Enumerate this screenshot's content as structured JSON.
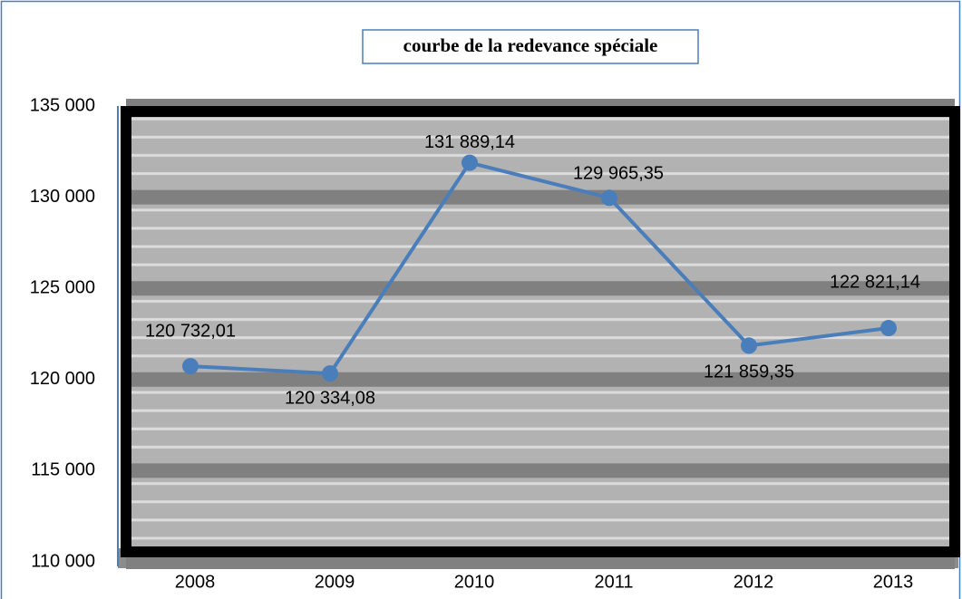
{
  "chart_data": {
    "type": "line",
    "title": "courbe de la redevance spéciale",
    "categories": [
      "2008",
      "2009",
      "2010",
      "2011",
      "2012",
      "2013"
    ],
    "series": [
      {
        "name": "redevance spéciale",
        "color": "#4a7ebb",
        "values": [
          120732.01,
          120334.08,
          131889.14,
          129965.35,
          121859.35,
          122821.14
        ],
        "value_labels": [
          "120 732,01",
          "120 334,08",
          "131 889,14",
          "129 965,35",
          "121 859,35",
          "122 821,14"
        ]
      }
    ],
    "ylim": [
      110000,
      135000
    ],
    "yticks": [
      {
        "value": 110000,
        "label": "110 000"
      },
      {
        "value": 115000,
        "label": "115 000"
      },
      {
        "value": 120000,
        "label": "120 000"
      },
      {
        "value": 125000,
        "label": "125 000"
      },
      {
        "value": 130000,
        "label": "130 000"
      },
      {
        "value": 135000,
        "label": "135 000"
      }
    ],
    "grid": true,
    "legend": false
  }
}
